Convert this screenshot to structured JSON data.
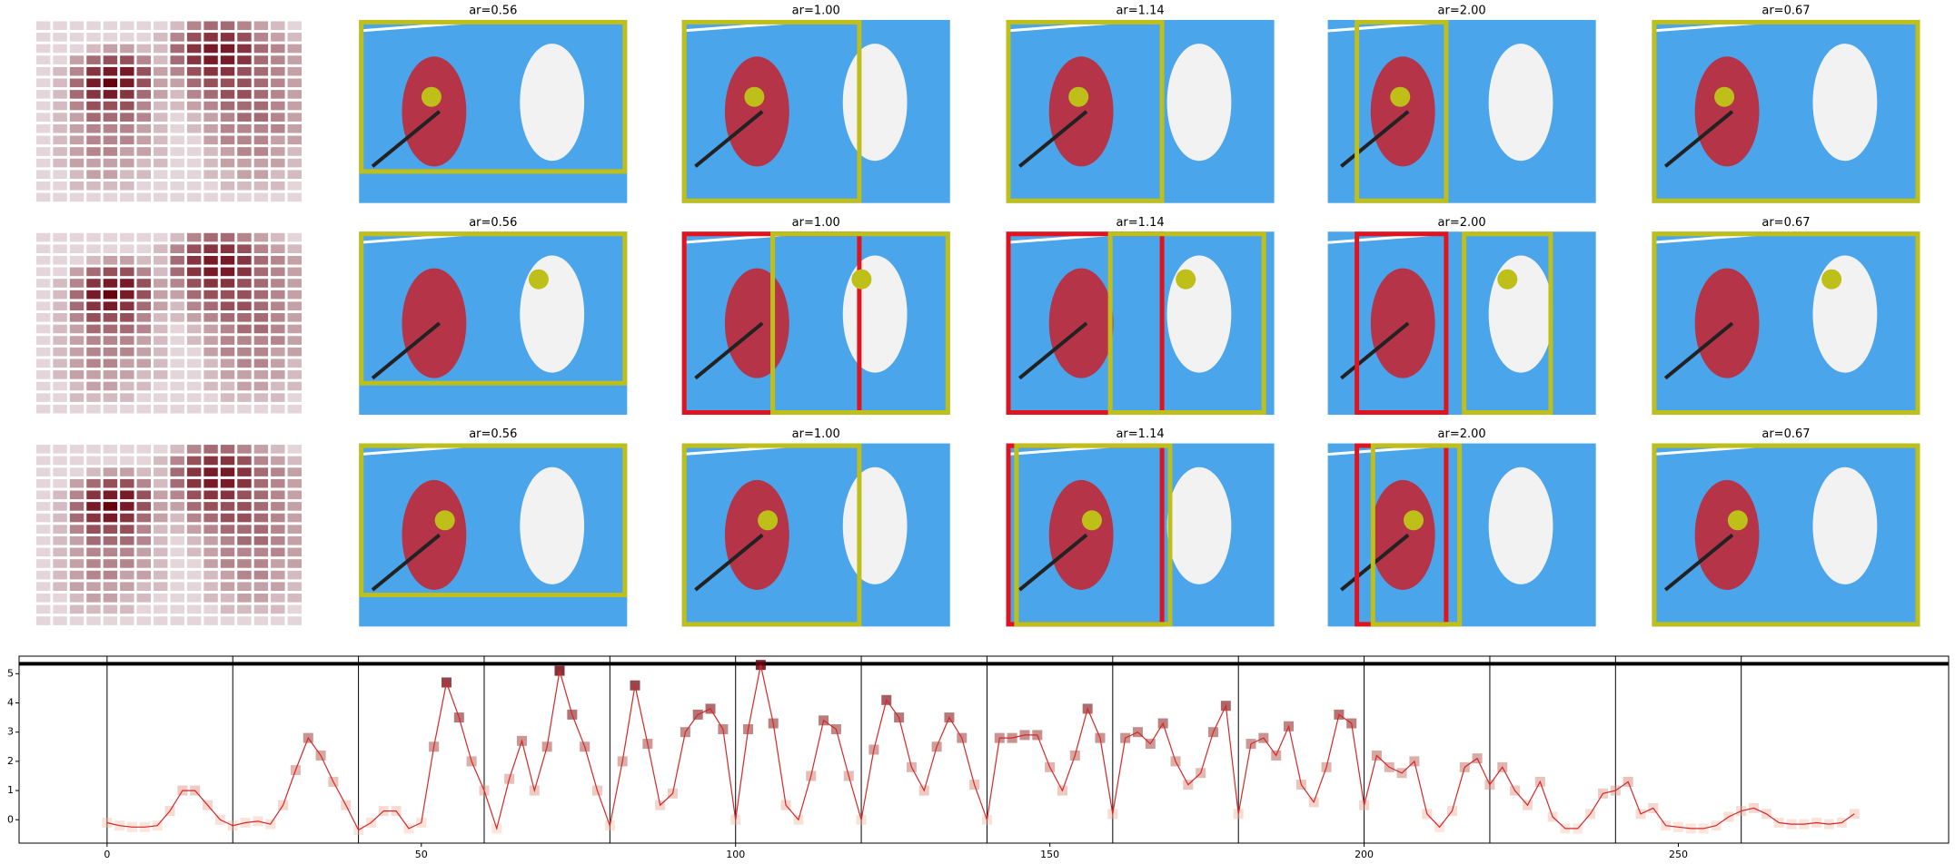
{
  "panel_titles": [
    "ar=0.56",
    "ar=1.00",
    "ar=1.14",
    "ar=2.00",
    "ar=0.67"
  ],
  "heatmap": [
    [
      1,
      1,
      1,
      1,
      1,
      1,
      1,
      1,
      2,
      4,
      5,
      5,
      4,
      3,
      2,
      1
    ],
    [
      1,
      1,
      1,
      1,
      1,
      1,
      1,
      2,
      4,
      6,
      7,
      7,
      6,
      4,
      3,
      2
    ],
    [
      1,
      1,
      1,
      2,
      3,
      3,
      2,
      2,
      5,
      7,
      8,
      8,
      7,
      5,
      4,
      3
    ],
    [
      1,
      1,
      3,
      5,
      6,
      6,
      4,
      2,
      5,
      7,
      8,
      8,
      7,
      5,
      4,
      3
    ],
    [
      1,
      2,
      4,
      7,
      8,
      8,
      6,
      3,
      4,
      6,
      7,
      7,
      6,
      5,
      4,
      3
    ],
    [
      1,
      2,
      5,
      8,
      9,
      8,
      6,
      3,
      3,
      5,
      6,
      6,
      6,
      5,
      4,
      3
    ],
    [
      1,
      2,
      5,
      7,
      8,
      7,
      5,
      3,
      2,
      4,
      5,
      6,
      6,
      5,
      4,
      3
    ],
    [
      1,
      2,
      4,
      6,
      6,
      6,
      4,
      2,
      2,
      3,
      4,
      5,
      5,
      5,
      4,
      3
    ],
    [
      1,
      2,
      3,
      5,
      5,
      5,
      4,
      2,
      1,
      2,
      3,
      4,
      5,
      5,
      4,
      3
    ],
    [
      1,
      2,
      3,
      4,
      4,
      4,
      3,
      2,
      1,
      2,
      3,
      4,
      4,
      4,
      4,
      3
    ],
    [
      1,
      2,
      3,
      4,
      4,
      4,
      3,
      2,
      1,
      1,
      3,
      4,
      4,
      4,
      3,
      3
    ],
    [
      1,
      2,
      3,
      4,
      4,
      3,
      3,
      2,
      1,
      1,
      2,
      3,
      4,
      4,
      3,
      2
    ],
    [
      1,
      2,
      3,
      3,
      3,
      3,
      2,
      2,
      1,
      1,
      2,
      3,
      3,
      3,
      3,
      2
    ],
    [
      1,
      1,
      2,
      3,
      3,
      2,
      2,
      1,
      1,
      1,
      2,
      2,
      3,
      3,
      2,
      2
    ],
    [
      1,
      1,
      2,
      2,
      2,
      2,
      1,
      1,
      1,
      1,
      1,
      2,
      2,
      2,
      2,
      1
    ],
    [
      1,
      1,
      1,
      1,
      1,
      1,
      1,
      1,
      1,
      1,
      1,
      1,
      1,
      1,
      1,
      1
    ]
  ],
  "chart_data": {
    "type": "line",
    "x": [
      0,
      2,
      4,
      6,
      8,
      10,
      12,
      14,
      16,
      18,
      20,
      22,
      24,
      26,
      28,
      30,
      32,
      34,
      36,
      38,
      40,
      42,
      44,
      46,
      48,
      50,
      52,
      54,
      56,
      58,
      60,
      62,
      64,
      66,
      68,
      70,
      72,
      74,
      76,
      78,
      80,
      82,
      84,
      86,
      88,
      90,
      92,
      94,
      96,
      98,
      100,
      102,
      104,
      106,
      108,
      110,
      112,
      114,
      116,
      118,
      120,
      122,
      124,
      126,
      128,
      130,
      132,
      134,
      136,
      138,
      140,
      142,
      144,
      146,
      148,
      150,
      152,
      154,
      156,
      158,
      160,
      162,
      164,
      166,
      168,
      170,
      172,
      174,
      176,
      178,
      180,
      182,
      184,
      186,
      188,
      190,
      192,
      194,
      196,
      198,
      200,
      202,
      204,
      206,
      208,
      210,
      212,
      214,
      216,
      218,
      220,
      222,
      224,
      226,
      228,
      230,
      232,
      234,
      236,
      238,
      240,
      242,
      244,
      246,
      248,
      250,
      252,
      254,
      256,
      258,
      260,
      262,
      264,
      266,
      268,
      270,
      272,
      274,
      276,
      278
    ],
    "values": [
      -0.1,
      -0.2,
      -0.25,
      -0.25,
      -0.2,
      0.3,
      1.0,
      1.0,
      0.5,
      0.0,
      -0.2,
      -0.1,
      -0.05,
      -0.15,
      0.5,
      1.7,
      2.8,
      2.2,
      1.3,
      0.5,
      -0.35,
      -0.1,
      0.3,
      0.3,
      -0.3,
      -0.1,
      2.5,
      4.7,
      3.5,
      2.0,
      1.0,
      -0.3,
      1.4,
      2.7,
      1.0,
      2.5,
      5.1,
      3.6,
      2.5,
      1.0,
      -0.2,
      2.0,
      4.6,
      2.6,
      0.5,
      0.9,
      3.0,
      3.6,
      3.8,
      3.1,
      0.0,
      3.1,
      5.3,
      3.3,
      0.5,
      0.0,
      1.5,
      3.4,
      3.1,
      1.5,
      0.0,
      2.4,
      4.1,
      3.5,
      1.8,
      1.0,
      2.5,
      3.5,
      2.8,
      1.2,
      0.0,
      2.8,
      2.8,
      2.9,
      2.9,
      1.8,
      1.0,
      2.2,
      3.8,
      2.8,
      0.2,
      2.8,
      3.0,
      2.6,
      3.3,
      2.0,
      1.2,
      1.6,
      3.0,
      3.9,
      0.2,
      2.6,
      2.8,
      2.2,
      3.2,
      1.2,
      0.6,
      1.8,
      3.6,
      3.3,
      0.5,
      2.2,
      1.8,
      1.6,
      2.0,
      0.2,
      -0.25,
      0.3,
      1.8,
      2.1,
      1.2,
      1.8,
      1.0,
      0.5,
      1.3,
      0.1,
      -0.3,
      -0.3,
      0.2,
      0.9,
      1.0,
      1.3,
      0.2,
      0.4,
      -0.2,
      -0.25,
      -0.3,
      -0.3,
      -0.2,
      0.1,
      0.3,
      0.4,
      0.2,
      -0.1,
      -0.15,
      -0.15,
      -0.1,
      -0.15,
      -0.1,
      0.2
    ],
    "color": "#d62728",
    "marker_colors": [
      "#fcbba1",
      "#67000d"
    ],
    "xlim": [
      -14,
      293
    ],
    "ylim": [
      -0.8,
      5.6
    ],
    "xticks": [
      0,
      50,
      100,
      150,
      200,
      250
    ],
    "yticks": [
      0,
      1,
      2,
      3,
      4,
      5
    ],
    "vlines": [
      0,
      20,
      40,
      60,
      80,
      100,
      120,
      140,
      160,
      180,
      200,
      220,
      240,
      260
    ],
    "hlines": [
      5.34
    ]
  }
}
